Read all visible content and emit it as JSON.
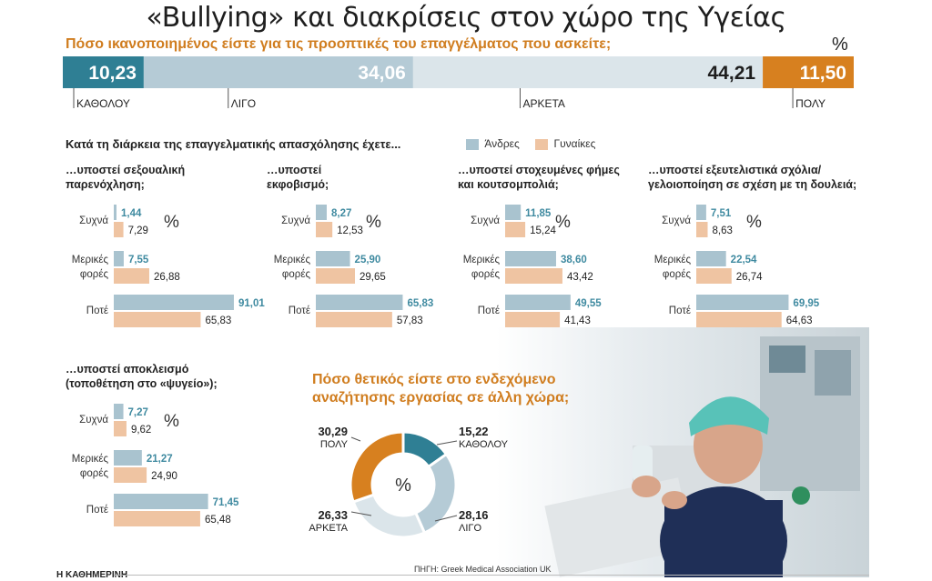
{
  "title": "«Bullying» και διακρίσεις στον χώρο της Υγείας",
  "colors": {
    "men": "#a9c3cf",
    "women": "#efc4a2",
    "dark_teal": "#2f7f94",
    "orange": "#d7801f",
    "mid_blue": "#b5cbd6",
    "light_gray": "#dbe5ea",
    "text_teal": "#3f8aa0"
  },
  "satisfaction": {
    "question": "Πόσο ικανοποιημένος είστε για τις προοπτικές του επαγγέλματος που ασκείτε;",
    "percent_sign": "%",
    "segments": [
      {
        "label": "ΚΑΘΟΛΟΥ",
        "value": 10.23,
        "value_text": "10,23"
      },
      {
        "label": "ΛΙΓΟ",
        "value": 34.06,
        "value_text": "34,06"
      },
      {
        "label": "ΑΡΚΕΤΑ",
        "value": 44.21,
        "value_text": "44,21"
      },
      {
        "label": "ΠΟΛΥ",
        "value": 11.5,
        "value_text": "11,50"
      }
    ]
  },
  "career": {
    "heading": "Κατά τη διάρκεια της επαγγελματικής απασχόλησης έχετε...",
    "legend": {
      "men": "Άνδρες",
      "women": "Γυναίκες"
    },
    "row_labels": {
      "often": "Συχνά",
      "sometimes_1": "Μερικές",
      "sometimes_2": "φορές",
      "never": "Ποτέ"
    },
    "percent_sign": "%"
  },
  "chart_data": [
    {
      "type": "bar",
      "title": "…υποστεί σεξουαλική παρενόχληση;",
      "title_lines": [
        "…υποστεί σεξουαλική",
        "παρενόχληση;"
      ],
      "categories": [
        "Συχνά",
        "Μερικές φορές",
        "Ποτέ"
      ],
      "series": [
        {
          "name": "Άνδρες",
          "values": [
            1.44,
            7.55,
            91.01
          ],
          "labels": [
            "1,44",
            "7,55",
            "91,01"
          ]
        },
        {
          "name": "Γυναίκες",
          "values": [
            7.29,
            26.88,
            65.83
          ],
          "labels": [
            "7,29",
            "26,88",
            "65,83"
          ]
        }
      ]
    },
    {
      "type": "bar",
      "title": "…υποστεί εκφοβισμό;",
      "title_lines": [
        "…υποστεί",
        "εκφοβισμό;"
      ],
      "categories": [
        "Συχνά",
        "Μερικές φορές",
        "Ποτέ"
      ],
      "series": [
        {
          "name": "Άνδρες",
          "values": [
            8.27,
            25.9,
            65.83
          ],
          "labels": [
            "8,27",
            "25,90",
            "65,83"
          ]
        },
        {
          "name": "Γυναίκες",
          "values": [
            12.53,
            29.65,
            57.83
          ],
          "labels": [
            "12,53",
            "29,65",
            "57,83"
          ]
        }
      ]
    },
    {
      "type": "bar",
      "title": "…υποστεί στοχευμένες φήμες και κουτσομπολιά;",
      "title_lines": [
        "…υποστεί στοχευμένες φήμες",
        "και κουτσομπολιά;"
      ],
      "categories": [
        "Συχνά",
        "Μερικές φορές",
        "Ποτέ"
      ],
      "series": [
        {
          "name": "Άνδρες",
          "values": [
            11.85,
            38.6,
            49.55
          ],
          "labels": [
            "11,85",
            "38,60",
            "49,55"
          ]
        },
        {
          "name": "Γυναίκες",
          "values": [
            15.24,
            43.42,
            41.43
          ],
          "labels": [
            "15,24",
            "43,42",
            "41,43"
          ]
        }
      ]
    },
    {
      "type": "bar",
      "title": "…υποστεί εξευτελιστικά σχόλια/ γελοιοποίηση σε σχέση με τη δουλειά;",
      "title_lines": [
        "…υποστεί εξευτελιστικά σχόλια/",
        "γελοιοποίηση σε σχέση με τη δουλειά;"
      ],
      "categories": [
        "Συχνά",
        "Μερικές φορές",
        "Ποτέ"
      ],
      "series": [
        {
          "name": "Άνδρες",
          "values": [
            7.51,
            22.54,
            69.95
          ],
          "labels": [
            "7,51",
            "22,54",
            "69,95"
          ]
        },
        {
          "name": "Γυναίκες",
          "values": [
            8.63,
            26.74,
            64.63
          ],
          "labels": [
            "8,63",
            "26,74",
            "64,63"
          ]
        }
      ]
    },
    {
      "type": "bar",
      "title": "…υποστεί αποκλεισμό (τοποθέτηση στο «ψυγείο»);",
      "title_lines": [
        "…υποστεί αποκλεισμό",
        "(τοποθέτηση στο «ψυγείο»);"
      ],
      "categories": [
        "Συχνά",
        "Μερικές φορές",
        "Ποτέ"
      ],
      "series": [
        {
          "name": "Άνδρες",
          "values": [
            7.27,
            21.27,
            71.45
          ],
          "labels": [
            "7,27",
            "21,27",
            "71,45"
          ]
        },
        {
          "name": "Γυναίκες",
          "values": [
            9.62,
            24.9,
            65.48
          ],
          "labels": [
            "9,62",
            "24,90",
            "65,48"
          ]
        }
      ]
    },
    {
      "type": "pie",
      "title": "Πόσο θετικός είστε στο ενδεχόμενο αναζήτησης εργασίας σε άλλη χώρα;",
      "title_lines": [
        "Πόσο θετικός είστε στο ενδεχόμενο",
        "αναζήτησης εργασίας σε άλλη χώρα;"
      ],
      "center_label": "%",
      "slices": [
        {
          "label": "ΚΑΘΟΛΟΥ",
          "value": 15.22,
          "value_text": "15,22"
        },
        {
          "label": "ΛΙΓΟ",
          "value": 28.16,
          "value_text": "28,16"
        },
        {
          "label": "ΑΡΚΕΤΑ",
          "value": 26.33,
          "value_text": "26,33"
        },
        {
          "label": "ΠΟΛΥ",
          "value": 30.29,
          "value_text": "30,29"
        }
      ]
    }
  ],
  "source": "ΠΗΓΗ: Greek Medical Association UK",
  "publisher": "Η ΚΑΘΗΜΕΡΙΝΗ"
}
